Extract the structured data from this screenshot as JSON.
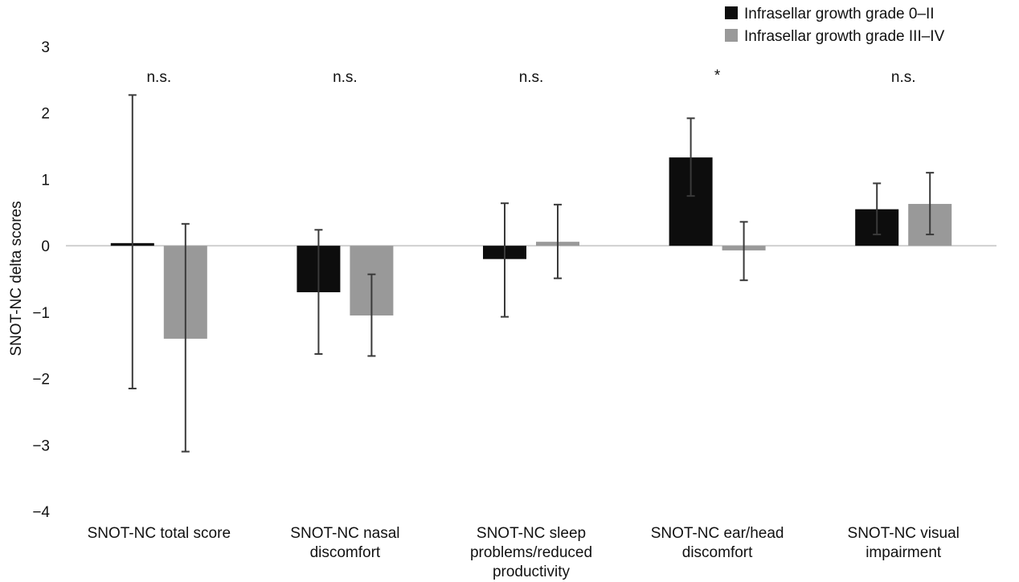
{
  "chart_data": {
    "type": "bar",
    "ylabel": "SNOT-NC delta scores",
    "xlabel": "",
    "ylim": [
      -4,
      3
    ],
    "yticks": [
      "3",
      "2",
      "1",
      "0",
      "−1",
      "−2",
      "−3",
      "−4"
    ],
    "grid": false,
    "legend_position": "top-right",
    "categories": [
      [
        "SNOT-NC total score"
      ],
      [
        "SNOT-NC nasal",
        "discomfort"
      ],
      [
        "SNOT-NC sleep",
        "problems/reduced",
        "productivity"
      ],
      [
        "SNOT-NC ear/head",
        "discomfort"
      ],
      [
        "SNOT-NC visual",
        "impairment"
      ]
    ],
    "significance": [
      "n.s.",
      "n.s.",
      "n.s.",
      "*",
      "n.s."
    ],
    "series": [
      {
        "name": "Infrasellar growth grade 0–II",
        "color": "#0d0d0d",
        "values": [
          0.04,
          -0.7,
          -0.2,
          1.33,
          0.55
        ],
        "error_low": [
          -2.15,
          -1.63,
          -1.07,
          0.75,
          0.17
        ],
        "error_high": [
          2.27,
          0.24,
          0.64,
          1.92,
          0.94
        ]
      },
      {
        "name": "Infrasellar growth grade III–IV",
        "color": "#999999",
        "values": [
          -1.4,
          -1.05,
          0.06,
          -0.07,
          0.63
        ],
        "error_low": [
          -3.1,
          -1.66,
          -0.49,
          -0.52,
          0.17
        ],
        "error_high": [
          0.33,
          -0.43,
          0.62,
          0.36,
          1.1
        ]
      }
    ]
  }
}
